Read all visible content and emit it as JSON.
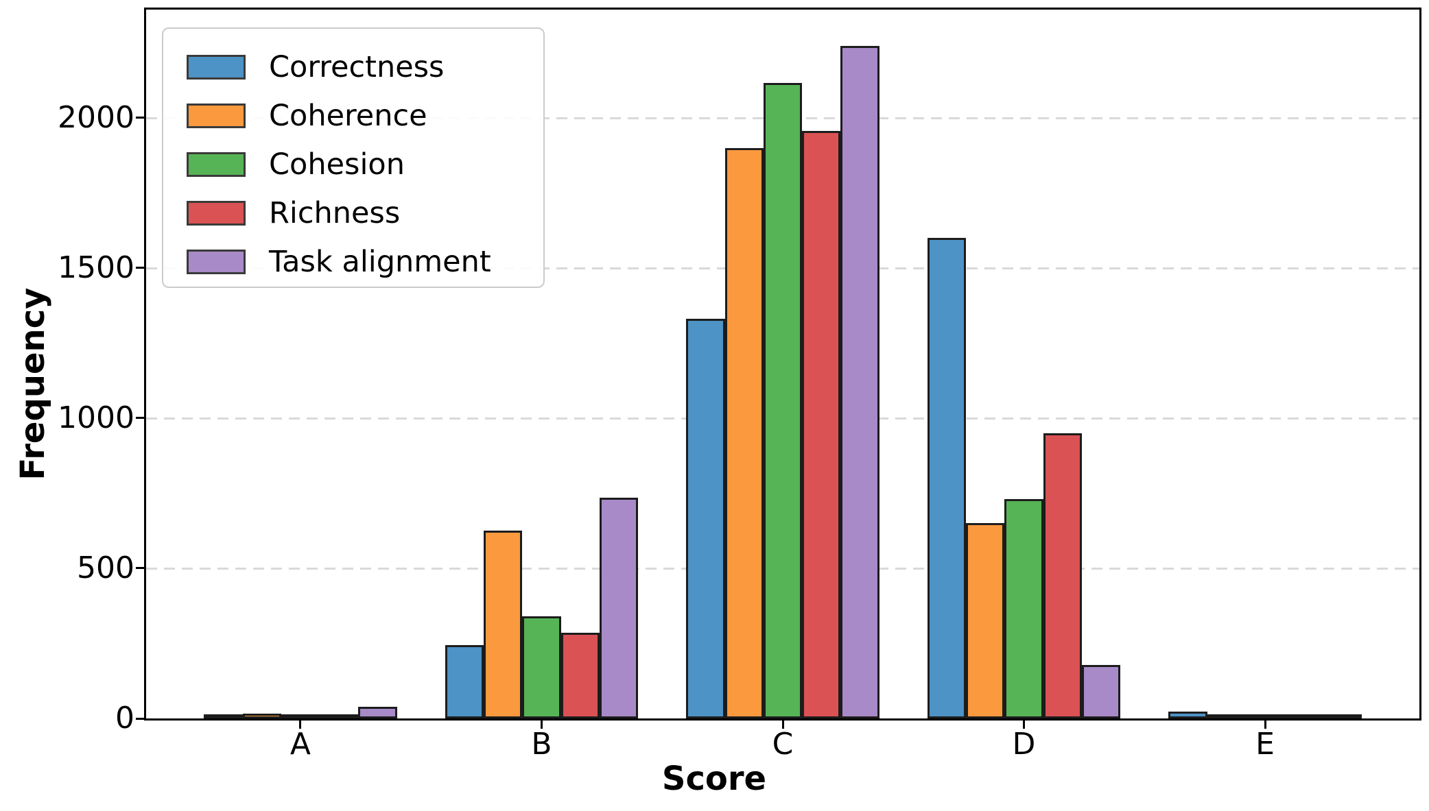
{
  "figure": {
    "background": "#ffffff",
    "plot_border_color": "#000000"
  },
  "chart_data": {
    "type": "bar",
    "title": "",
    "xlabel": "Score",
    "ylabel": "Frequency",
    "categories": [
      "A",
      "B",
      "C",
      "D",
      "E"
    ],
    "series": [
      {
        "name": "Correctness",
        "color": "#4d93c6",
        "values": [
          5,
          245,
          1330,
          1600,
          22
        ]
      },
      {
        "name": "Coherence",
        "color": "#fb993e",
        "values": [
          15,
          625,
          1900,
          650,
          2
        ]
      },
      {
        "name": "Cohesion",
        "color": "#56b456",
        "values": [
          8,
          340,
          2115,
          730,
          2
        ]
      },
      {
        "name": "Richness",
        "color": "#da5253",
        "values": [
          2,
          285,
          1955,
          950,
          3
        ]
      },
      {
        "name": "Task alignment",
        "color": "#a88ac8",
        "values": [
          38,
          735,
          2240,
          178,
          1
        ]
      }
    ],
    "ylim": [
      0,
      2360
    ],
    "yticks": [
      0,
      500,
      1000,
      1500,
      2000
    ],
    "grid": "horizontal-dashed",
    "gridline_color": "#d9d9d9",
    "bar_edge_color": "#1c1c1c",
    "legend_position": "upper-left",
    "legend_border_color": "#cbcbcb"
  }
}
